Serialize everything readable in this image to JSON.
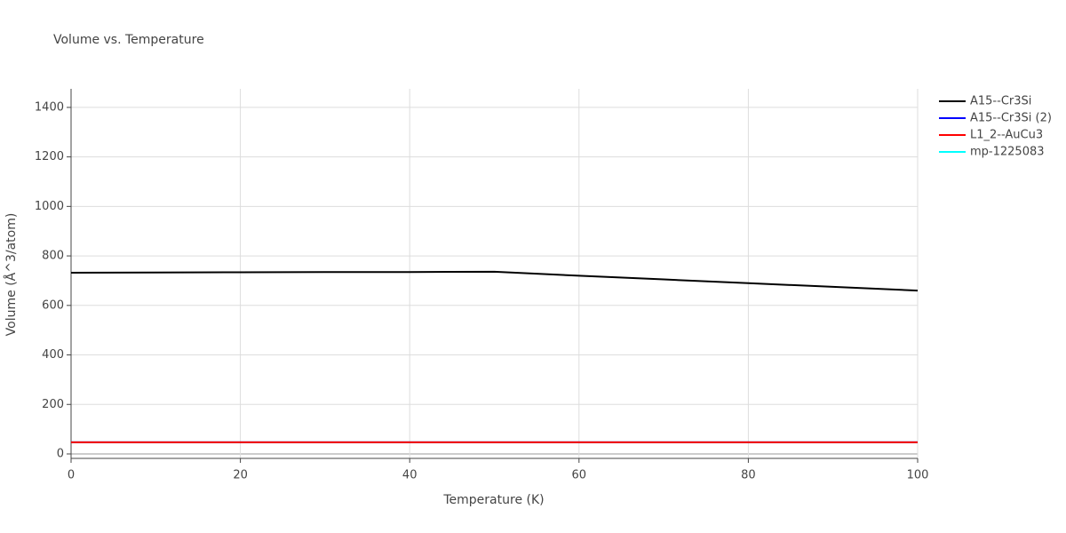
{
  "chart_data": {
    "type": "line",
    "title": "Volume vs. Temperature",
    "x_label": "Temperature (K)",
    "y_label": "Volume (Å^3/atom)",
    "x": [
      0,
      10,
      20,
      30,
      40,
      50,
      60,
      70,
      80,
      90,
      100
    ],
    "series": [
      {
        "name": "A15--Cr3Si",
        "color": "#000000",
        "values": [
          732,
          733,
          734,
          735,
          735,
          736,
          720,
          705,
          690,
          675,
          660
        ]
      },
      {
        "name": "A15--Cr3Si (2)",
        "color": "#0000ff",
        "values": [
          47,
          47,
          47,
          47,
          47,
          47,
          47,
          47,
          47,
          47,
          47
        ]
      },
      {
        "name": "L1_2--AuCu3",
        "color": "#ff0000",
        "values": [
          47,
          47,
          47,
          47,
          47,
          47,
          47,
          47,
          47,
          47,
          47
        ]
      },
      {
        "name": "mp-1225083",
        "color": "#00ffff",
        "values": [
          47,
          47,
          47,
          47,
          47,
          47,
          47,
          47,
          47,
          47,
          47
        ]
      }
    ],
    "xlim": [
      0,
      100
    ],
    "xticks": [
      0,
      20,
      40,
      60,
      80,
      100
    ],
    "ylim": [
      -18,
      1475
    ],
    "yticks": [
      0,
      200,
      400,
      600,
      800,
      1000,
      1200,
      1400
    ],
    "grid": true,
    "legend": "right"
  }
}
